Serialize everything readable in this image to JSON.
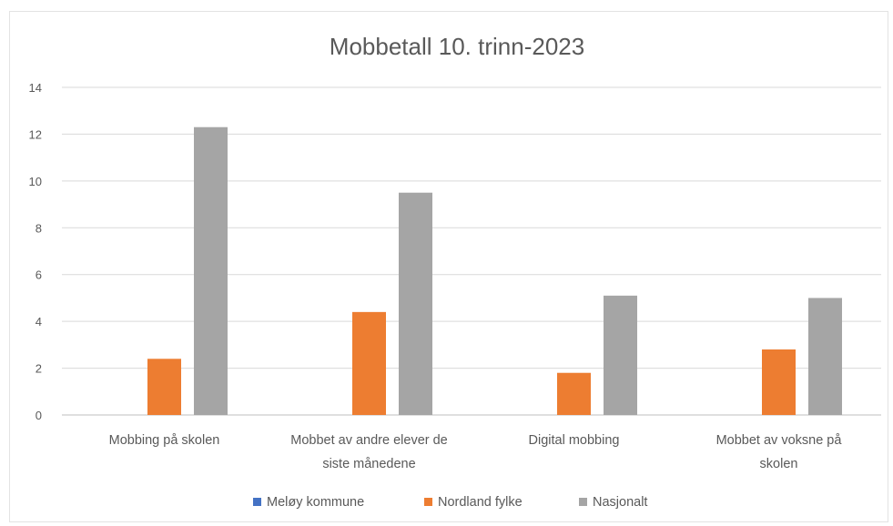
{
  "chart_data": {
    "type": "bar",
    "title": "Mobbetall 10. trinn-2023",
    "xlabel": "",
    "ylabel": "",
    "categories": [
      [
        "Mobbing på skolen"
      ],
      [
        "Mobbet av andre elever de",
        "siste månedene"
      ],
      [
        "Digital mobbing"
      ],
      [
        "Mobbet av voksne på",
        "skolen"
      ]
    ],
    "series": [
      {
        "name": "Meløy kommune",
        "values": [
          0,
          0,
          0,
          0
        ],
        "color": "#4472c4"
      },
      {
        "name": "Nordland fylke",
        "values": [
          2.4,
          4.4,
          1.8,
          2.8
        ],
        "color": "#ed7d31"
      },
      {
        "name": "Nasjonalt",
        "values": [
          12.3,
          9.5,
          5.1,
          5.0
        ],
        "color": "#a5a5a5"
      }
    ],
    "ylim": [
      0,
      14
    ],
    "yticks": [
      0,
      2,
      4,
      6,
      8,
      10,
      12,
      14
    ],
    "grid": true,
    "legend_position": "bottom"
  }
}
